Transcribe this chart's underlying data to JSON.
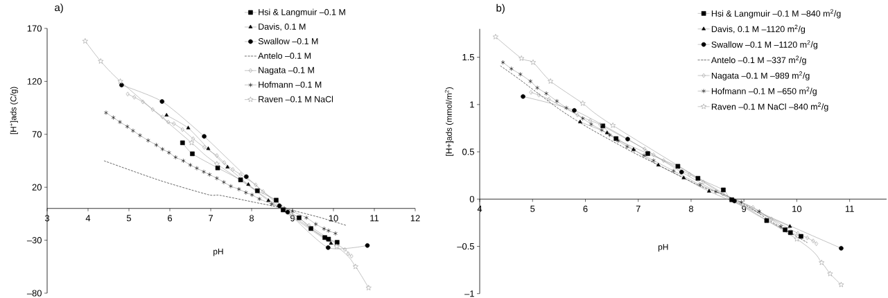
{
  "chart_data": [
    {
      "type": "line",
      "title": "a)",
      "xlabel": "pH",
      "ylabel": "[H$^{+}$]ads (C/g)",
      "xlim": [
        3,
        12
      ],
      "xticks": [
        3,
        4,
        5,
        6,
        7,
        8,
        9,
        10,
        11,
        12
      ],
      "ylim": [
        -80,
        170
      ],
      "yticks": [
        {
          "value": -80,
          "label": "–80"
        },
        {
          "value": -30,
          "label": "–30"
        },
        20,
        70,
        120,
        170
      ],
      "legend": "top right",
      "series": [
        {
          "name": "Hsi & Langmuir –0.1 M",
          "color": "#000000",
          "marker": "square",
          "line_style": "solid",
          "x": [
            6.31,
            6.55,
            7.17,
            7.73,
            8.14,
            8.6,
            8.77,
            9.16,
            9.45,
            9.79,
            9.88,
            10.09
          ],
          "values": [
            62,
            51.6,
            38.3,
            27,
            16.7,
            7.8,
            -1.4,
            -8.8,
            -19,
            -27.5,
            -29,
            -32
          ]
        },
        {
          "name": "Davis, 0.1 M",
          "color": "#000000",
          "marker": "triangle",
          "line_style": "solid",
          "x": [
            5.92,
            6.45,
            6.94,
            7.41,
            7.92,
            8.41,
            9.94
          ],
          "values": [
            88,
            76,
            56.4,
            39,
            22.6,
            7.4,
            -33
          ]
        },
        {
          "name": "Swallow –0.1 M",
          "color": "#000000",
          "marker": "circle",
          "line_style": "solid",
          "x": [
            4.82,
            5.81,
            6.84,
            7.87,
            8.68,
            8.88,
            9.87,
            10.83
          ],
          "values": [
            116.5,
            101,
            68,
            30,
            2.5,
            -3.5,
            -37,
            -35
          ]
        },
        {
          "name": "Antelo –0.1 M",
          "color": "#000000",
          "marker": "none",
          "line_style": "dashed",
          "x": [
            4.39,
            5.75,
            6.94,
            7.22,
            8.07,
            8.8,
            9.65,
            10.31
          ],
          "values": [
            45,
            26.5,
            13,
            12.4,
            5.8,
            0,
            -8.3,
            -16
          ]
        },
        {
          "name": "Nagata –0.1 M",
          "color": "#999999",
          "marker": "diamond",
          "line_style": "solid",
          "x": [
            4.97,
            5.13,
            5.34,
            5.58,
            5.82,
            5.96,
            6.1,
            6.31,
            6.57,
            6.84,
            7.15,
            7.33,
            7.54,
            7.73,
            8.1,
            8.28,
            9.4,
            10.28,
            10.36,
            10.44
          ],
          "values": [
            108,
            105,
            100.6,
            93.4,
            86.5,
            81.6,
            80,
            74.5,
            65.8,
            57.7,
            49.9,
            43.3,
            36.8,
            32,
            22.2,
            16,
            -16,
            -38.8,
            -42.7,
            -45
          ]
        },
        {
          "name": "Hofmann –0.1 M",
          "color": "#000000",
          "marker": "cross",
          "line_style": "solid",
          "x": [
            4.44,
            4.62,
            4.78,
            4.96,
            5.1,
            5.27,
            5.47,
            5.67,
            5.82,
            5.98,
            6.14,
            6.33,
            6.5,
            6.66,
            6.83,
            6.97,
            7.15,
            7.32,
            7.49,
            7.69,
            7.86,
            8.01,
            8.19,
            8.49,
            8.8,
            9.0,
            9.34,
            9.57,
            9.77,
            9.88,
            10.05
          ],
          "values": [
            90.4,
            85.8,
            81.6,
            77.3,
            73.4,
            69,
            64.2,
            59.9,
            56,
            52.7,
            48.3,
            45,
            41,
            38,
            34.6,
            32,
            28.5,
            24.8,
            21,
            18.2,
            15,
            12.8,
            9,
            4.1,
            0,
            -2.9,
            -8.8,
            -14.8,
            -19.2,
            -21,
            -23.6
          ]
        },
        {
          "name": "Raven –0.1 M NaCl",
          "color": "#999999",
          "marker": "star",
          "line_style": "solid",
          "x": [
            3.93,
            4.31,
            4.79,
            6.53,
            7.15,
            10.08,
            10.54,
            10.86
          ],
          "values": [
            158,
            139,
            120,
            62,
            42,
            -36,
            -55,
            -75
          ]
        }
      ]
    },
    {
      "type": "line",
      "title": "b)",
      "xlabel": "pH",
      "ylabel": "[H+]ads (mmol/m$^{2}$)",
      "xlim": [
        4,
        11.7
      ],
      "xticks": [
        4,
        5,
        6,
        7,
        8,
        9,
        10,
        11
      ],
      "ylim": [
        -1,
        1.8
      ],
      "yticks": [
        {
          "value": -1,
          "label": "–1"
        },
        {
          "value": -0.5,
          "label": "–0.5"
        },
        0,
        0.5,
        1,
        1.5
      ],
      "legend": "top right",
      "series": [
        {
          "name": "Hsi & Langmuir –0.1 M –840 m$^{2}$/g",
          "color": "#000000",
          "marker": "square",
          "line_style": "solid",
          "x": [
            6.33,
            6.58,
            7.18,
            7.75,
            8.13,
            8.61,
            8.77,
            9.43,
            9.78,
            9.88,
            10.08
          ],
          "values": [
            0.774,
            0.64,
            0.481,
            0.347,
            0.22,
            0.097,
            -0.007,
            -0.227,
            -0.325,
            -0.355,
            -0.394
          ]
        },
        {
          "name": "Davis, 0.1 M –1120 m$^{2}$/g",
          "color": "#000000",
          "marker": "triangle",
          "line_style": "solid",
          "x": [
            5.9,
            6.41,
            6.91,
            7.38,
            7.86,
            8.34,
            9.87
          ],
          "values": [
            0.816,
            0.7,
            0.525,
            0.359,
            0.224,
            0.083,
            -0.289
          ]
        },
        {
          "name": "Swallow –0.1 M –1120 m$^{2}$/g",
          "color": "#000000",
          "marker": "circle",
          "line_style": "solid",
          "x": [
            4.82,
            5.79,
            6.8,
            7.82,
            8.82,
            10.84
          ],
          "values": [
            1.085,
            0.938,
            0.635,
            0.286,
            -0.02,
            -0.52
          ]
        },
        {
          "name": "Antelo –0.1 M –337 m$^{2}$/g",
          "color": "#000000",
          "marker": "none",
          "line_style": "dashed",
          "x": [
            4.39,
            4.76,
            5.5,
            6.07,
            6.86,
            7.34,
            8.17,
            8.65,
            9.09,
            9.59,
            10.2
          ],
          "values": [
            1.41,
            1.263,
            0.953,
            0.75,
            0.506,
            0.371,
            0.139,
            0.041,
            -0.081,
            -0.264,
            -0.46
          ]
        },
        {
          "name": "Nagata –0.1 M –989 m$^{2}$/g",
          "color": "#999999",
          "marker": "diamond",
          "line_style": "solid",
          "x": [
            4.97,
            5.12,
            5.31,
            5.85,
            6.09,
            6.28,
            7.12,
            7.29,
            7.48,
            7.97,
            8.23,
            8.6,
            9.17,
            9.52,
            10.02,
            10.2,
            10.31,
            10.37
          ],
          "values": [
            1.129,
            1.1,
            1.056,
            0.889,
            0.83,
            0.787,
            0.53,
            0.469,
            0.408,
            0.261,
            0.18,
            0.054,
            -0.088,
            -0.21,
            -0.362,
            -0.41,
            -0.443,
            -0.472
          ]
        },
        {
          "name": "Hofmann –0.1 M –650 m$^{2}$/g",
          "color": "#000000",
          "marker": "cross",
          "line_style": "solid",
          "x": [
            4.44,
            4.6,
            4.77,
            4.96,
            5.09,
            5.26,
            5.46,
            5.64,
            5.95,
            6.11,
            6.31,
            6.46,
            6.62,
            6.79,
            6.92,
            7.11,
            7.29,
            7.67,
            8.17,
            8.47,
            8.95,
            9.29,
            9.7
          ],
          "values": [
            1.446,
            1.378,
            1.32,
            1.246,
            1.177,
            1.117,
            1.036,
            0.965,
            0.853,
            0.792,
            0.73,
            0.677,
            0.616,
            0.554,
            0.518,
            0.462,
            0.408,
            0.298,
            0.151,
            0.078,
            -0.032,
            -0.13,
            -0.289
          ]
        },
        {
          "name": "Raven –0.1 M NaCl –840 m$^{2}$/g",
          "color": "#999999",
          "marker": "star",
          "line_style": "solid",
          "x": [
            4.3,
            4.79,
            5.01,
            5.34,
            5.95,
            6.52,
            10.0,
            10.47,
            10.63,
            10.84
          ],
          "values": [
            1.716,
            1.488,
            1.446,
            1.246,
            1.012,
            0.779,
            -0.423,
            -0.672,
            -0.79,
            -0.906
          ]
        }
      ]
    }
  ]
}
